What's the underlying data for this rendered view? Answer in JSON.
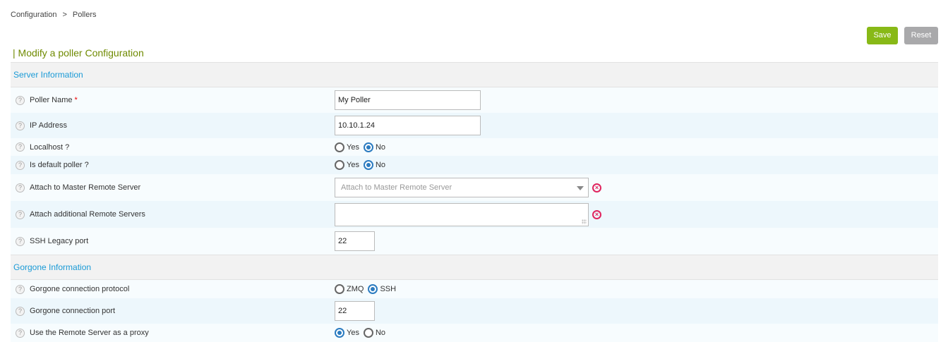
{
  "breadcrumb": {
    "items": [
      "Configuration",
      "Pollers"
    ],
    "separator": ">"
  },
  "toolbar": {
    "save_label": "Save",
    "reset_label": "Reset"
  },
  "page_title": "| Modify a poller Configuration",
  "sections": {
    "server": {
      "title": "Server Information",
      "poller_name": {
        "label": "Poller Name",
        "required": "*",
        "value": "My Poller"
      },
      "ip_address": {
        "label": "IP Address",
        "value": "10.10.1.24"
      },
      "localhost": {
        "label": "Localhost ?",
        "options": [
          "Yes",
          "No"
        ],
        "selected": "No"
      },
      "default_poller": {
        "label": "Is default poller ?",
        "options": [
          "Yes",
          "No"
        ],
        "selected": "No"
      },
      "master_remote": {
        "label": "Attach to Master Remote Server",
        "placeholder": "Attach to Master Remote Server"
      },
      "additional_remotes": {
        "label": "Attach additional Remote Servers",
        "value": ""
      },
      "ssh_legacy_port": {
        "label": "SSH Legacy port",
        "value": "22"
      }
    },
    "gorgone": {
      "title": "Gorgone Information",
      "protocol": {
        "label": "Gorgone connection protocol",
        "options": [
          "ZMQ",
          "SSH"
        ],
        "selected": "SSH"
      },
      "port": {
        "label": "Gorgone connection port",
        "value": "22"
      },
      "proxy": {
        "label": "Use the Remote Server as a proxy",
        "options": [
          "Yes",
          "No"
        ],
        "selected": "Yes"
      }
    }
  },
  "icons": {
    "help": "question-circle-icon",
    "clear": "clear-circle-icon",
    "dropdown": "chevron-down-icon"
  },
  "colors": {
    "save": "#88b917",
    "reset": "#a9a9ab",
    "title": "#6f8a00",
    "section_title": "#1a9ad6",
    "radio_selected": "#2b7bc0",
    "clear": "#e0245e"
  }
}
